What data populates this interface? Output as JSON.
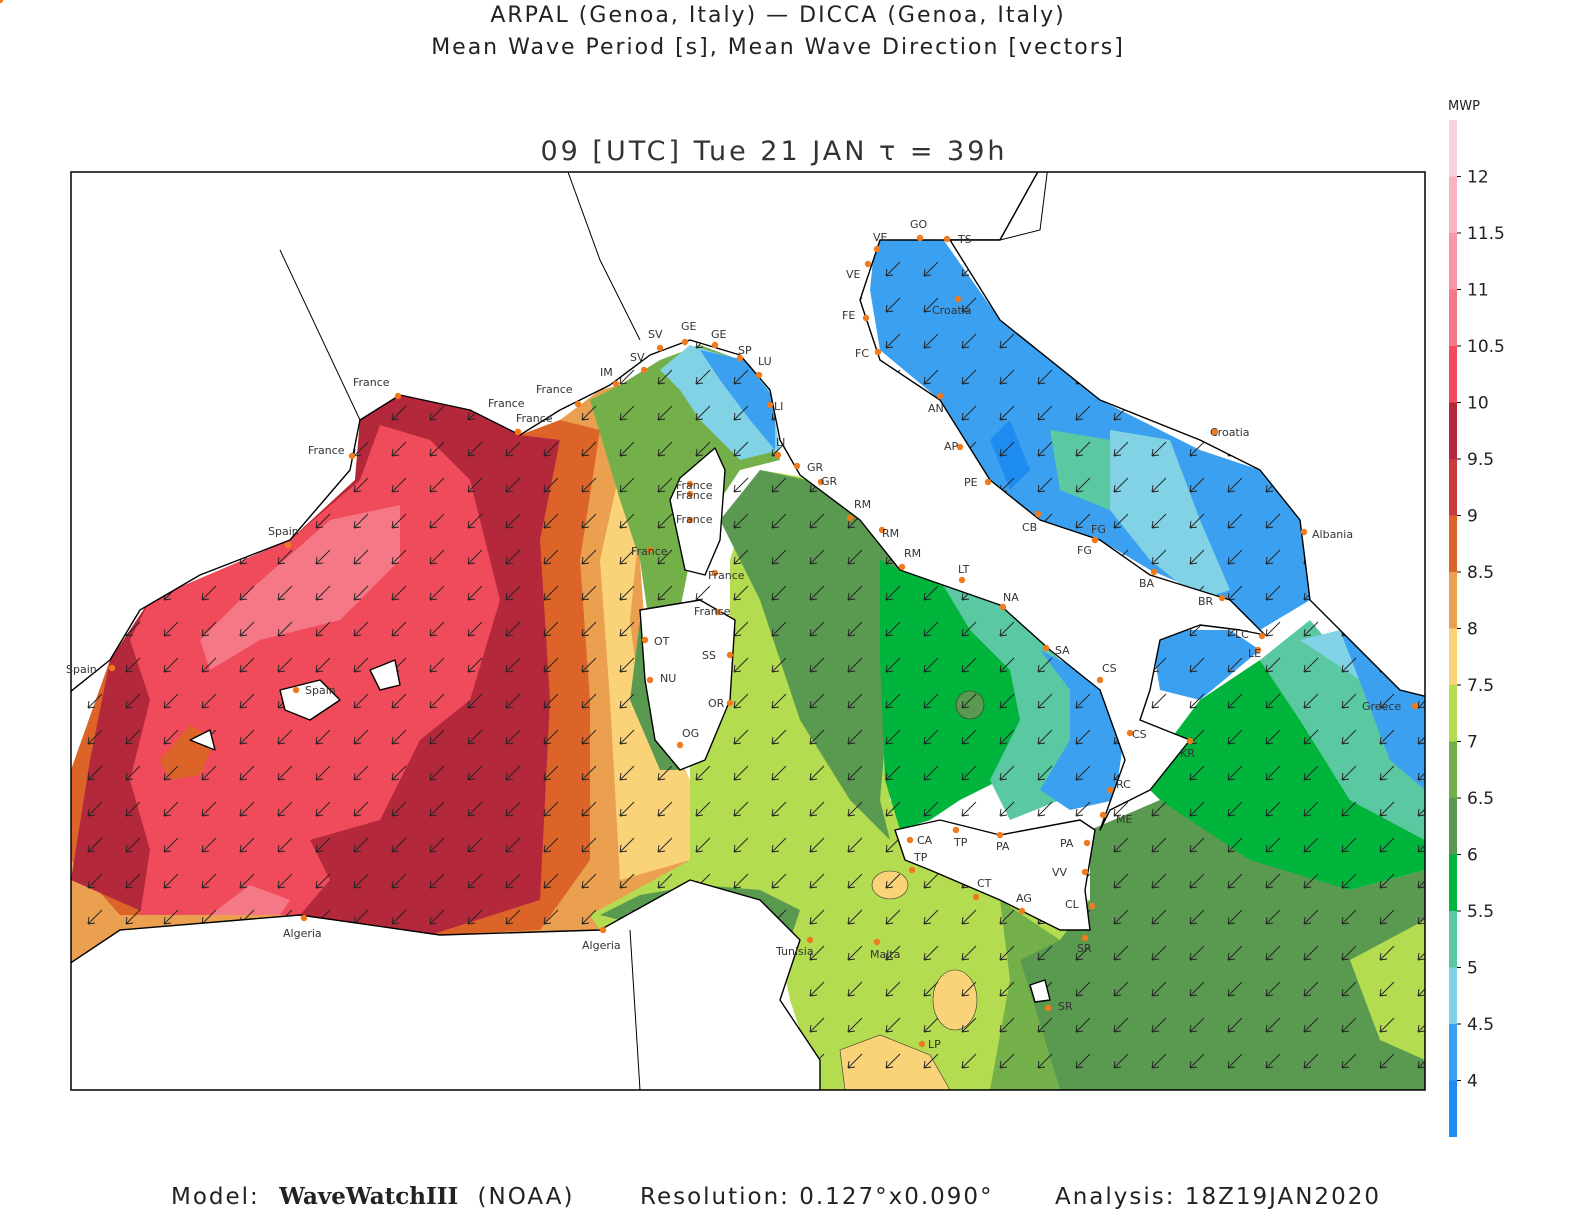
{
  "header": {
    "line1": "ARPAL (Genoa, Italy)  —  DICCA (Genoa, Italy)",
    "line2": "Mean Wave Period [s], Mean Wave Direction [vectors]"
  },
  "map": {
    "time_label": "09 [UTC] Tue 21 JAN  τ = 39h",
    "places": [
      "GO",
      "TS",
      "VE",
      "VE",
      "Croatia",
      "FE",
      "FC",
      "AN",
      "AP",
      "PE",
      "CB",
      "FG",
      "FG",
      "BA",
      "BR",
      "LC",
      "LE",
      "Croatia",
      "Albania",
      "Greece",
      "KR",
      "CS",
      "CS",
      "SA",
      "NA",
      "LT",
      "RM",
      "RM",
      "RM",
      "GR",
      "GR",
      "LI",
      "LI",
      "LU",
      "SP",
      "GE",
      "GE",
      "SV",
      "SV",
      "IM",
      "France",
      "France",
      "France",
      "France",
      "France",
      "Spain",
      "Spain",
      "Spain",
      "Algeria",
      "Algeria",
      "Tunisia",
      "France",
      "France",
      "France",
      "France",
      "France",
      "France",
      "OT",
      "SS",
      "NU",
      "OR",
      "OG",
      "CA",
      "TP",
      "TP",
      "PA",
      "PA",
      "ME",
      "RC",
      "VV",
      "CT",
      "AG",
      "CL",
      "SR",
      "SR",
      "Malta",
      "LP",
      "AG"
    ]
  },
  "colorbar": {
    "label": "MWP",
    "range": [
      3.5,
      12.5
    ],
    "ticks": [
      4,
      4.5,
      5,
      5.5,
      6,
      6.5,
      7,
      7.5,
      8,
      8.5,
      9,
      9.5,
      10,
      10.5,
      11,
      11.5,
      12
    ],
    "colors": [
      "#1e8cf0",
      "#3ca0f0",
      "#82d2e6",
      "#5ac8a0",
      "#00b43c",
      "#5a9a50",
      "#74b04a",
      "#b4dc50",
      "#fad278",
      "#eba050",
      "#dc6428",
      "#c83c3c",
      "#b4283c",
      "#f04b5a",
      "#f57887",
      "#fa96a5",
      "#fab4be",
      "#fad2dc"
    ]
  },
  "footer": {
    "model_label": "Model:",
    "model": "WaveWatchIII",
    "source": "(NOAA)",
    "resolution": "Resolution: 0.127°x0.090°",
    "analysis": "Analysis: 18Z19JAN2020"
  }
}
